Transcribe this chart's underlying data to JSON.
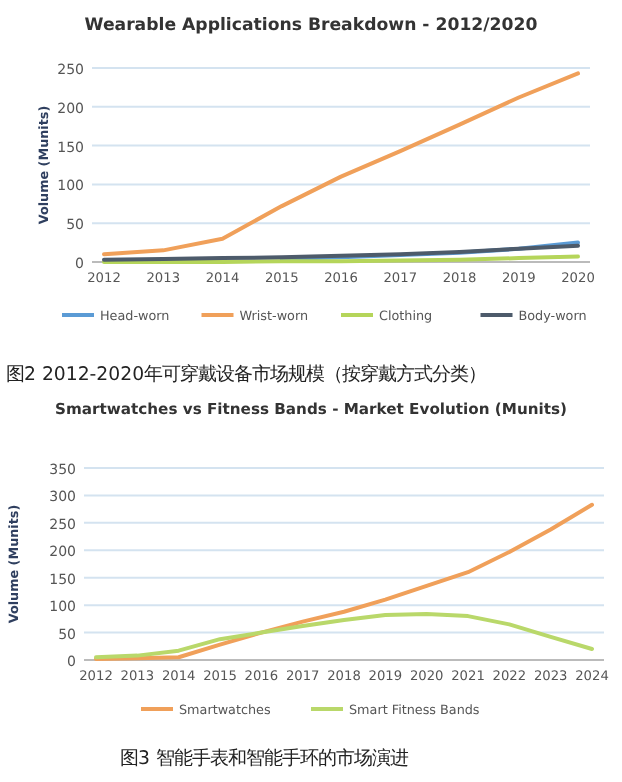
{
  "chart_data": [
    {
      "type": "line",
      "title": "Wearable Applications Breakdown - 2012/2020",
      "ylabel": "Volume (Munits)",
      "categories": [
        "2012",
        "2013",
        "2014",
        "2015",
        "2016",
        "2017",
        "2018",
        "2019",
        "2020"
      ],
      "series": [
        {
          "name": "Head-worn",
          "color": "#5b9bd5",
          "values": [
            null,
            null,
            null,
            4,
            6,
            9,
            12,
            17,
            25
          ]
        },
        {
          "name": "Wrist-worn",
          "color": "#f0a05a",
          "values": [
            10,
            15,
            30,
            72,
            110,
            143,
            177,
            212,
            243
          ]
        },
        {
          "name": "Clothing",
          "color": "#b5d55a",
          "values": [
            0,
            0,
            0,
            1,
            1,
            2,
            3,
            5,
            7
          ]
        },
        {
          "name": "Body-worn",
          "color": "#4d5b6b",
          "values": [
            3,
            4,
            5,
            6,
            8,
            10,
            13,
            17,
            21
          ]
        }
      ],
      "ylim": [
        0,
        250
      ],
      "yticks": [
        0,
        50,
        100,
        150,
        200,
        250
      ],
      "grid": "y",
      "legend": "bottom",
      "annotations": [
        "图2 2012-2020年可穿戴设备市场规模（按穿戴方式分类）"
      ]
    },
    {
      "type": "line",
      "title": "Smartwatches vs Fitness Bands - Market Evolution (Munits)",
      "ylabel": "Volume (Munits)",
      "categories": [
        "2012",
        "2013",
        "2014",
        "2015",
        "2016",
        "2017",
        "2018",
        "2019",
        "2020",
        "2021",
        "2022",
        "2023",
        "2024"
      ],
      "series": [
        {
          "name": "Smartwatches",
          "color": "#f0a05a",
          "values": [
            2,
            3,
            5,
            28,
            50,
            70,
            88,
            110,
            135,
            160,
            197,
            238,
            283
          ]
        },
        {
          "name": "Smart Fitness Bands",
          "color": "#b9d86a",
          "values": [
            5,
            8,
            17,
            38,
            50,
            62,
            73,
            82,
            84,
            80,
            65,
            42,
            20
          ]
        }
      ],
      "ylim": [
        0,
        350
      ],
      "yticks": [
        0,
        50,
        100,
        150,
        200,
        250,
        300,
        350
      ],
      "grid": "y",
      "legend": "bottom",
      "annotations": [
        "图3 智能手表和智能手环的市场演进"
      ]
    }
  ]
}
